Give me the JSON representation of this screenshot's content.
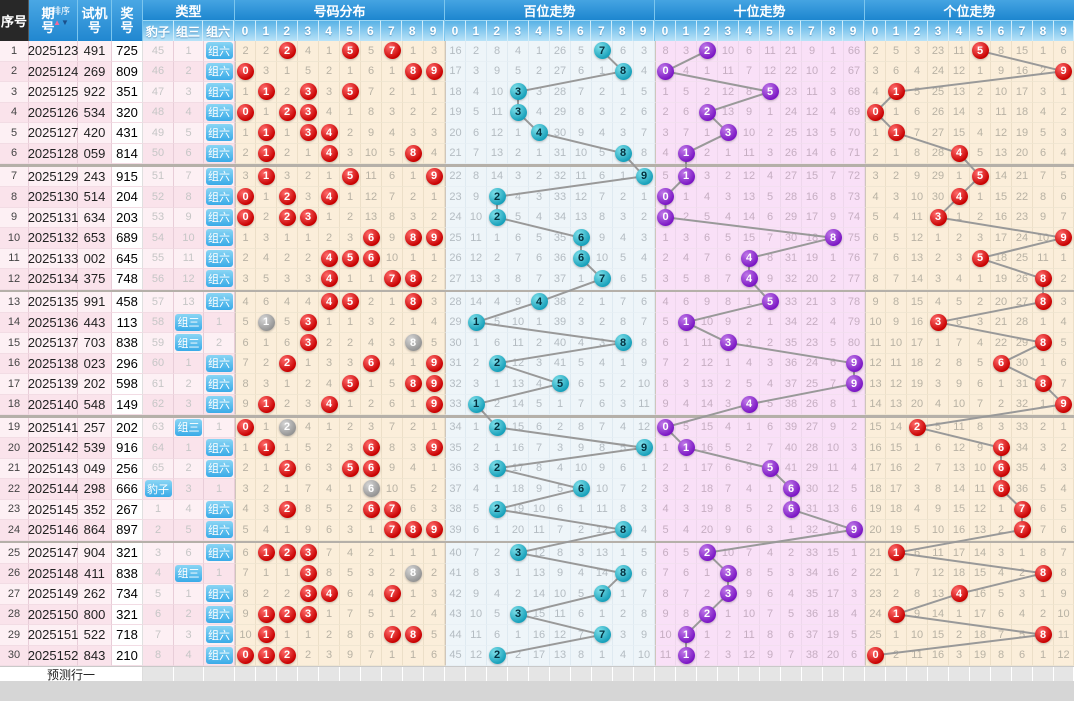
{
  "header": {
    "seq": "序号",
    "period": "期号",
    "sort_label": "排序",
    "sort_up": "▲",
    "sort_down": "▼",
    "test": "试机号",
    "prize": "奖号",
    "type_title": "类型",
    "type_cols": [
      "豹子",
      "组三",
      "组六"
    ],
    "sections": [
      "号码分布",
      "百位走势",
      "十位走势",
      "个位走势"
    ],
    "digits": [
      "0",
      "1",
      "2",
      "3",
      "4",
      "5",
      "6",
      "7",
      "8",
      "9"
    ]
  },
  "rows": [
    {
      "seq": "1",
      "period": "2025123",
      "test": "491",
      "prize": "725",
      "bz": "45",
      "z3": "1",
      "z6": "组六",
      "badge": "z6"
    },
    {
      "seq": "2",
      "period": "2025124",
      "test": "269",
      "prize": "809",
      "bz": "46",
      "z3": "2",
      "z6": "组六",
      "badge": "z6"
    },
    {
      "seq": "3",
      "period": "2025125",
      "test": "922",
      "prize": "351",
      "bz": "47",
      "z3": "3",
      "z6": "组六",
      "badge": "z6"
    },
    {
      "seq": "4",
      "period": "2025126",
      "test": "534",
      "prize": "320",
      "bz": "48",
      "z3": "4",
      "z6": "组六",
      "badge": "z6"
    },
    {
      "seq": "5",
      "period": "2025127",
      "test": "420",
      "prize": "431",
      "bz": "49",
      "z3": "5",
      "z6": "组六",
      "badge": "z6"
    },
    {
      "seq": "6",
      "period": "2025128",
      "test": "059",
      "prize": "814",
      "bz": "50",
      "z3": "6",
      "z6": "组六",
      "badge": "z6"
    },
    {
      "seq": "7",
      "period": "2025129",
      "test": "243",
      "prize": "915",
      "bz": "51",
      "z3": "7",
      "z6": "组六",
      "badge": "z6"
    },
    {
      "seq": "8",
      "period": "2025130",
      "test": "514",
      "prize": "204",
      "bz": "52",
      "z3": "8",
      "z6": "组六",
      "badge": "z6"
    },
    {
      "seq": "9",
      "period": "2025131",
      "test": "634",
      "prize": "203",
      "bz": "53",
      "z3": "9",
      "z6": "组六",
      "badge": "z6"
    },
    {
      "seq": "10",
      "period": "2025132",
      "test": "653",
      "prize": "689",
      "bz": "54",
      "z3": "10",
      "z6": "组六",
      "badge": "z6"
    },
    {
      "seq": "11",
      "period": "2025133",
      "test": "002",
      "prize": "645",
      "bz": "55",
      "z3": "11",
      "z6": "组六",
      "badge": "z6"
    },
    {
      "seq": "12",
      "period": "2025134",
      "test": "375",
      "prize": "748",
      "bz": "56",
      "z3": "12",
      "z6": "组六",
      "badge": "z6"
    },
    {
      "seq": "13",
      "period": "2025135",
      "test": "991",
      "prize": "458",
      "bz": "57",
      "z3": "13",
      "z6": "组六",
      "badge": "z6"
    },
    {
      "seq": "14",
      "period": "2025136",
      "test": "443",
      "prize": "113",
      "bz": "58",
      "z3": "组三",
      "z6": "1",
      "badge": "z3"
    },
    {
      "seq": "15",
      "period": "2025137",
      "test": "703",
      "prize": "838",
      "bz": "59",
      "z3": "组三",
      "z6": "2",
      "badge": "z3"
    },
    {
      "seq": "16",
      "period": "2025138",
      "test": "023",
      "prize": "296",
      "bz": "60",
      "z3": "1",
      "z6": "组六",
      "badge": "z6"
    },
    {
      "seq": "17",
      "period": "2025139",
      "test": "202",
      "prize": "598",
      "bz": "61",
      "z3": "2",
      "z6": "组六",
      "badge": "z6"
    },
    {
      "seq": "18",
      "period": "2025140",
      "test": "548",
      "prize": "149",
      "bz": "62",
      "z3": "3",
      "z6": "组六",
      "badge": "z6"
    },
    {
      "seq": "19",
      "period": "2025141",
      "test": "257",
      "prize": "202",
      "bz": "63",
      "z3": "组三",
      "z6": "1",
      "badge": "z3"
    },
    {
      "seq": "20",
      "period": "2025142",
      "test": "539",
      "prize": "916",
      "bz": "64",
      "z3": "1",
      "z6": "组六",
      "badge": "z6"
    },
    {
      "seq": "21",
      "period": "2025143",
      "test": "049",
      "prize": "256",
      "bz": "65",
      "z3": "2",
      "z6": "组六",
      "badge": "z6"
    },
    {
      "seq": "22",
      "period": "2025144",
      "test": "298",
      "prize": "666",
      "bz": "豹子",
      "z3": "3",
      "z6": "1",
      "badge": "bz"
    },
    {
      "seq": "23",
      "period": "2025145",
      "test": "352",
      "prize": "267",
      "bz": "1",
      "z3": "4",
      "z6": "组六",
      "badge": "z6"
    },
    {
      "seq": "24",
      "period": "2025146",
      "test": "864",
      "prize": "897",
      "bz": "2",
      "z3": "5",
      "z6": "组六",
      "badge": "z6"
    },
    {
      "seq": "25",
      "period": "2025147",
      "test": "904",
      "prize": "321",
      "bz": "3",
      "z3": "6",
      "z6": "组六",
      "badge": "z6"
    },
    {
      "seq": "26",
      "period": "2025148",
      "test": "411",
      "prize": "838",
      "bz": "4",
      "z3": "组三",
      "z6": "1",
      "badge": "z3"
    },
    {
      "seq": "27",
      "period": "2025149",
      "test": "262",
      "prize": "734",
      "bz": "5",
      "z3": "1",
      "z6": "组六",
      "badge": "z6"
    },
    {
      "seq": "28",
      "period": "2025150",
      "test": "800",
      "prize": "321",
      "bz": "6",
      "z3": "2",
      "z6": "组六",
      "badge": "z6"
    },
    {
      "seq": "29",
      "period": "2025151",
      "test": "522",
      "prize": "718",
      "bz": "7",
      "z3": "3",
      "z6": "组六",
      "badge": "z6"
    },
    {
      "seq": "30",
      "period": "2025152",
      "test": "843",
      "prize": "210",
      "bz": "8",
      "z3": "4",
      "z6": "组六",
      "badge": "z6"
    }
  ],
  "miss_seeds_before_row1": {
    "dist": [
      1,
      1,
      0,
      3,
      0,
      0,
      4,
      0,
      0,
      2
    ],
    "hundred": [
      15,
      1,
      7,
      3,
      0,
      25,
      4,
      0,
      5,
      2
    ],
    "ten": [
      7,
      2,
      0,
      9,
      5,
      10,
      20,
      8,
      0,
      65
    ],
    "unit": [
      1,
      4,
      2,
      22,
      10,
      0,
      7,
      14,
      0,
      5
    ]
  },
  "group_separator_after_rows": [
    6,
    12,
    18,
    24
  ],
  "footer": {
    "label": "预测行一"
  },
  "colors": {
    "header_blue": "#2187d0",
    "digit_header_blue": "#58b2e6",
    "ball_red": "#c80000",
    "ball_gray": "#949494",
    "ball_teal": "#17a0ba",
    "ball_purple": "#7b16c4",
    "trend_line": "#999999",
    "dist_bg": "#fbeeda",
    "hundred_bg": "#eef5f9",
    "ten_bg": "#f9e0f7",
    "unit_bg": "#fbeeda",
    "left_row_odd": "#fdf0f4",
    "left_row_even": "#fae3eb"
  }
}
